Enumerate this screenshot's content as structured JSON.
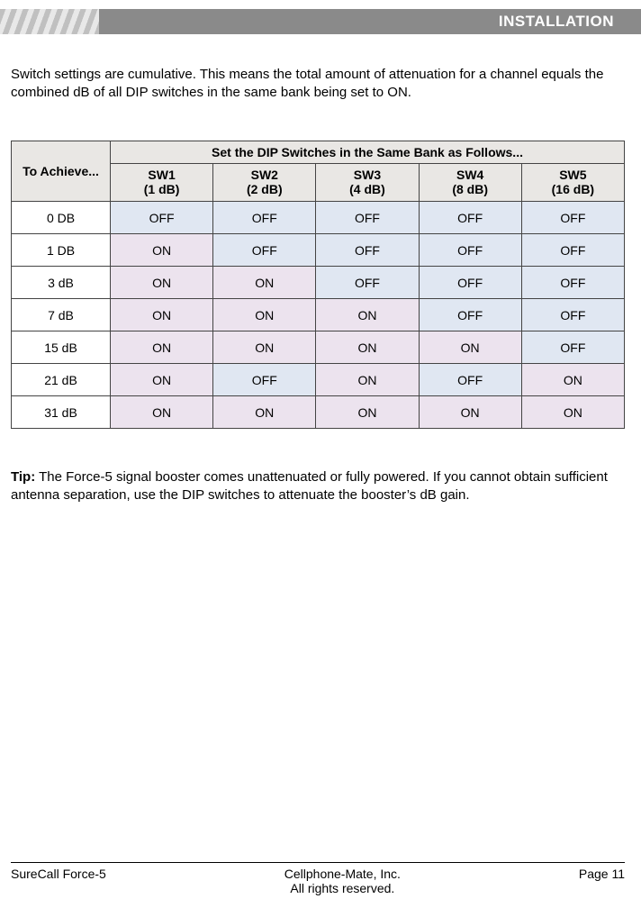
{
  "header": {
    "section": "INSTALLATION"
  },
  "intro": "Switch settings are cumulative. This means the total amount of attenuation for a channel equals the combined dB of all DIP switches in the same bank being set to ON.",
  "table": {
    "achieve_header": "To Achieve...",
    "bank_header": "Set the DIP Switches in the Same Bank as Follows...",
    "switches": [
      {
        "label": "SW1",
        "db": "(1 dB)"
      },
      {
        "label": "SW2",
        "db": "(2 dB)"
      },
      {
        "label": "SW3",
        "db": "(4 dB)"
      },
      {
        "label": "SW4",
        "db": "(8 dB)"
      },
      {
        "label": "SW5",
        "db": "(16 dB)"
      }
    ],
    "rows": [
      {
        "achieve": "0 DB",
        "states": [
          "OFF",
          "OFF",
          "OFF",
          "OFF",
          "OFF"
        ]
      },
      {
        "achieve": "1 DB",
        "states": [
          "ON",
          "OFF",
          "OFF",
          "OFF",
          "OFF"
        ]
      },
      {
        "achieve": "3 dB",
        "states": [
          "ON",
          "ON",
          "OFF",
          "OFF",
          "OFF"
        ]
      },
      {
        "achieve": "7 dB",
        "states": [
          "ON",
          "ON",
          "ON",
          "OFF",
          "OFF"
        ]
      },
      {
        "achieve": "15 dB",
        "states": [
          "ON",
          "ON",
          "ON",
          "ON",
          "OFF"
        ]
      },
      {
        "achieve": "21 dB",
        "states": [
          "ON",
          "OFF",
          "ON",
          "OFF",
          "ON"
        ]
      },
      {
        "achieve": "31 dB",
        "states": [
          "ON",
          "ON",
          "ON",
          "ON",
          "ON"
        ]
      }
    ],
    "colors": {
      "header_bg": "#e9e7e4",
      "on_bg": "#ece3ee",
      "off_bg": "#e0e7f2",
      "border": "#444444"
    }
  },
  "tip": {
    "label": "Tip:",
    "text": " The Force-5 signal booster comes unattenuated or fully powered. If you cannot obtain sufficient antenna separation, use the DIP switches to attenuate the booster’s dB gain."
  },
  "footer": {
    "left": "SureCall Force-5",
    "center1": "Cellphone-Mate, Inc.",
    "center2": "All rights reserved.",
    "right": "Page 11"
  }
}
